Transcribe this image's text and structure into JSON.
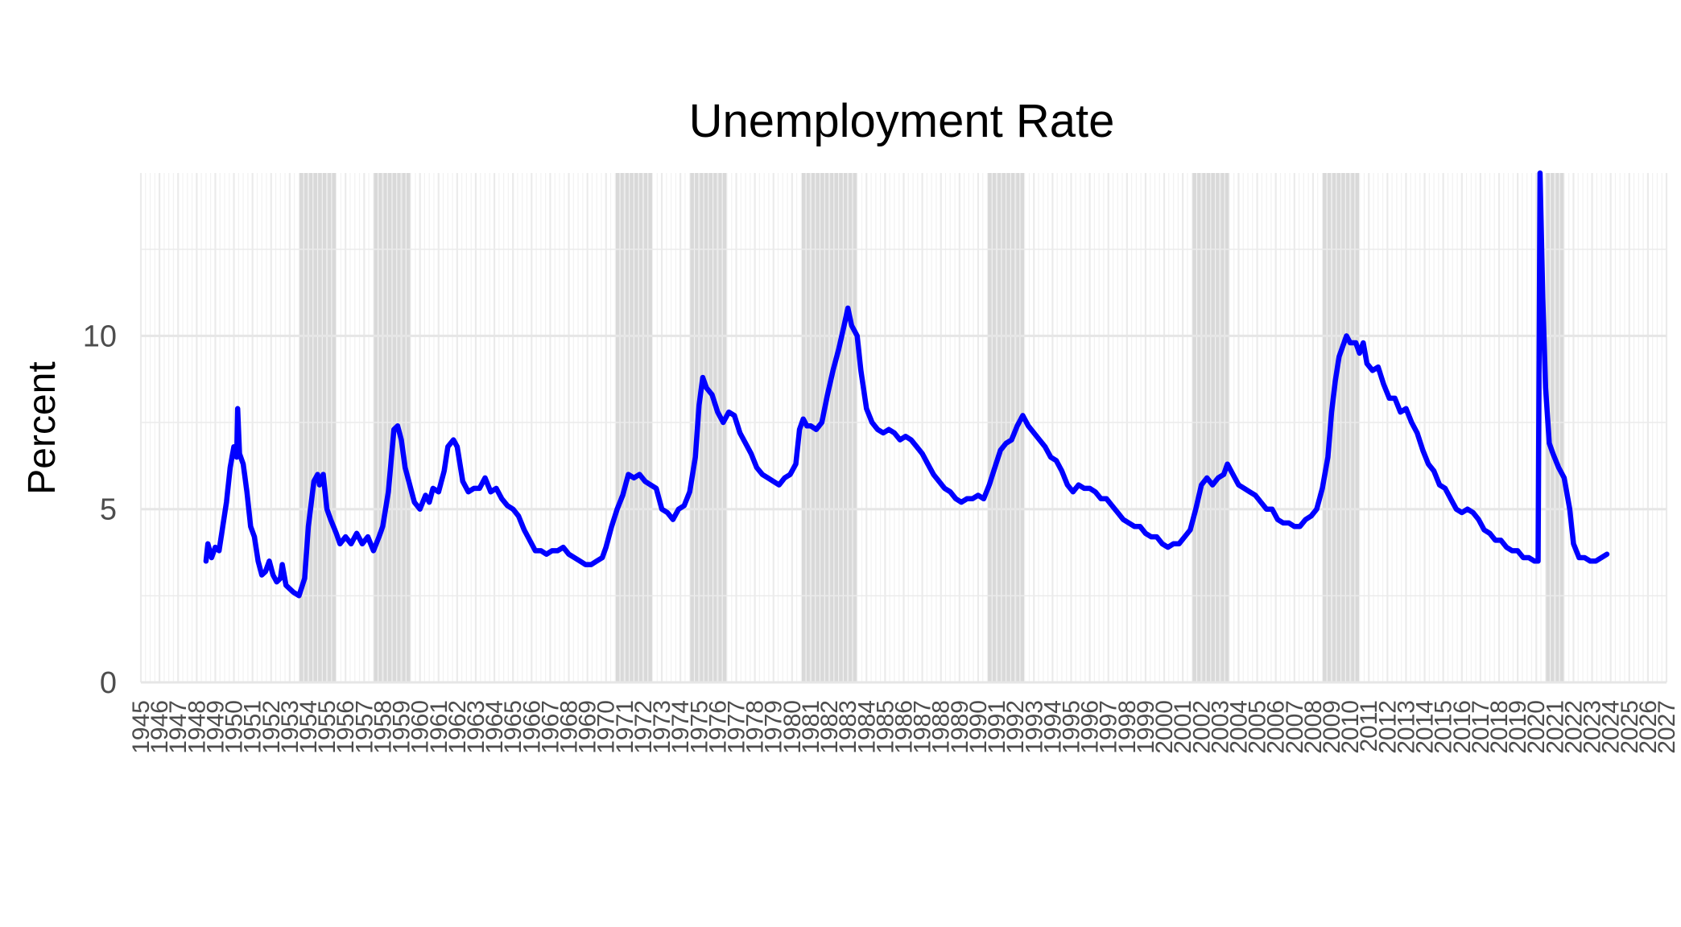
{
  "chart_data": {
    "type": "line",
    "title": "Unemployment Rate",
    "xlabel": "",
    "ylabel": "Percent",
    "xlim": [
      1945,
      2027
    ],
    "ylim": [
      0,
      14.7
    ],
    "y_ticks": [
      0,
      5,
      10
    ],
    "x_tick_labels": [
      "1945",
      "1946",
      "1947",
      "1948",
      "1949",
      "1950",
      "1951",
      "1952",
      "1953",
      "1954",
      "1955",
      "1956",
      "1957",
      "1958",
      "1959",
      "1960",
      "1961",
      "1962",
      "1963",
      "1964",
      "1965",
      "1966",
      "1967",
      "1968",
      "1969",
      "1970",
      "1971",
      "1972",
      "1973",
      "1974",
      "1975",
      "1976",
      "1977",
      "1978",
      "1979",
      "1980",
      "1981",
      "1982",
      "1983",
      "1984",
      "1985",
      "1986",
      "1987",
      "1988",
      "1989",
      "1990",
      "1991",
      "1992",
      "1993",
      "1994",
      "1995",
      "1996",
      "1997",
      "1998",
      "1999",
      "2000",
      "2001",
      "2002",
      "2003",
      "2004",
      "2005",
      "2006",
      "2007",
      "2008",
      "2009",
      "2010",
      "2011",
      "2012",
      "2013",
      "2014",
      "2015",
      "2016",
      "2017",
      "2018",
      "2019",
      "2020",
      "2021",
      "2022",
      "2023",
      "2024",
      "2025",
      "2026",
      "2027"
    ],
    "grid": true,
    "legend": "none",
    "recessions": [
      [
        1953.5,
        1955.5
      ],
      [
        1957.5,
        1959.5
      ],
      [
        1970.5,
        1972.5
      ],
      [
        1974.5,
        1976.5
      ],
      [
        1980.5,
        1983.5
      ],
      [
        1990.5,
        1992.5
      ],
      [
        2001.5,
        2003.5
      ],
      [
        2008.5,
        2010.5
      ],
      [
        2020.5,
        2021.5
      ]
    ],
    "recession_color": "#d9d9d9",
    "series": [
      {
        "color": "#0000ff",
        "points": [
          [
            1948.5,
            3.5
          ],
          [
            1948.6,
            4.0
          ],
          [
            1948.8,
            3.6
          ],
          [
            1949.0,
            3.9
          ],
          [
            1949.2,
            3.8
          ],
          [
            1949.4,
            4.5
          ],
          [
            1949.6,
            5.2
          ],
          [
            1949.8,
            6.2
          ],
          [
            1950.0,
            6.8
          ],
          [
            1950.15,
            6.5
          ],
          [
            1950.2,
            7.9
          ],
          [
            1950.3,
            6.6
          ],
          [
            1950.5,
            6.3
          ],
          [
            1950.7,
            5.5
          ],
          [
            1950.9,
            4.5
          ],
          [
            1951.1,
            4.2
          ],
          [
            1951.3,
            3.5
          ],
          [
            1951.5,
            3.1
          ],
          [
            1951.7,
            3.2
          ],
          [
            1951.9,
            3.5
          ],
          [
            1952.1,
            3.1
          ],
          [
            1952.3,
            2.9
          ],
          [
            1952.5,
            3.0
          ],
          [
            1952.6,
            3.4
          ],
          [
            1952.8,
            2.8
          ],
          [
            1953.0,
            2.7
          ],
          [
            1953.2,
            2.6
          ],
          [
            1953.5,
            2.5
          ],
          [
            1953.8,
            3.0
          ],
          [
            1954.0,
            4.5
          ],
          [
            1954.3,
            5.8
          ],
          [
            1954.5,
            6.0
          ],
          [
            1954.6,
            5.7
          ],
          [
            1954.8,
            6.0
          ],
          [
            1955.0,
            5.0
          ],
          [
            1955.2,
            4.7
          ],
          [
            1955.5,
            4.3
          ],
          [
            1955.7,
            4.0
          ],
          [
            1956.0,
            4.2
          ],
          [
            1956.3,
            4.0
          ],
          [
            1956.6,
            4.3
          ],
          [
            1956.9,
            4.0
          ],
          [
            1957.2,
            4.2
          ],
          [
            1957.5,
            3.8
          ],
          [
            1957.8,
            4.2
          ],
          [
            1958.0,
            4.5
          ],
          [
            1958.3,
            5.5
          ],
          [
            1958.6,
            7.3
          ],
          [
            1958.8,
            7.4
          ],
          [
            1959.0,
            7.0
          ],
          [
            1959.2,
            6.2
          ],
          [
            1959.4,
            5.8
          ],
          [
            1959.7,
            5.2
          ],
          [
            1960.0,
            5.0
          ],
          [
            1960.3,
            5.4
          ],
          [
            1960.5,
            5.2
          ],
          [
            1960.7,
            5.6
          ],
          [
            1961.0,
            5.5
          ],
          [
            1961.3,
            6.1
          ],
          [
            1961.5,
            6.8
          ],
          [
            1961.8,
            7.0
          ],
          [
            1962.0,
            6.8
          ],
          [
            1962.3,
            5.8
          ],
          [
            1962.6,
            5.5
          ],
          [
            1962.9,
            5.6
          ],
          [
            1963.2,
            5.6
          ],
          [
            1963.5,
            5.9
          ],
          [
            1963.8,
            5.5
          ],
          [
            1964.1,
            5.6
          ],
          [
            1964.4,
            5.3
          ],
          [
            1964.7,
            5.1
          ],
          [
            1965.0,
            5.0
          ],
          [
            1965.3,
            4.8
          ],
          [
            1965.6,
            4.4
          ],
          [
            1965.9,
            4.1
          ],
          [
            1966.2,
            3.8
          ],
          [
            1966.5,
            3.8
          ],
          [
            1966.8,
            3.7
          ],
          [
            1967.1,
            3.8
          ],
          [
            1967.4,
            3.8
          ],
          [
            1967.7,
            3.9
          ],
          [
            1968.0,
            3.7
          ],
          [
            1968.3,
            3.6
          ],
          [
            1968.6,
            3.5
          ],
          [
            1968.9,
            3.4
          ],
          [
            1969.2,
            3.4
          ],
          [
            1969.5,
            3.5
          ],
          [
            1969.8,
            3.6
          ],
          [
            1970.0,
            3.9
          ],
          [
            1970.3,
            4.5
          ],
          [
            1970.6,
            5.0
          ],
          [
            1970.9,
            5.4
          ],
          [
            1971.2,
            6.0
          ],
          [
            1971.5,
            5.9
          ],
          [
            1971.8,
            6.0
          ],
          [
            1972.1,
            5.8
          ],
          [
            1972.4,
            5.7
          ],
          [
            1972.7,
            5.6
          ],
          [
            1973.0,
            5.0
          ],
          [
            1973.3,
            4.9
          ],
          [
            1973.6,
            4.7
          ],
          [
            1973.9,
            5.0
          ],
          [
            1974.2,
            5.1
          ],
          [
            1974.5,
            5.5
          ],
          [
            1974.8,
            6.5
          ],
          [
            1975.0,
            8.0
          ],
          [
            1975.2,
            8.8
          ],
          [
            1975.4,
            8.5
          ],
          [
            1975.7,
            8.3
          ],
          [
            1976.0,
            7.8
          ],
          [
            1976.3,
            7.5
          ],
          [
            1976.6,
            7.8
          ],
          [
            1976.9,
            7.7
          ],
          [
            1977.2,
            7.2
          ],
          [
            1977.5,
            6.9
          ],
          [
            1977.8,
            6.6
          ],
          [
            1978.1,
            6.2
          ],
          [
            1978.4,
            6.0
          ],
          [
            1978.7,
            5.9
          ],
          [
            1979.0,
            5.8
          ],
          [
            1979.3,
            5.7
          ],
          [
            1979.6,
            5.9
          ],
          [
            1979.9,
            6.0
          ],
          [
            1980.2,
            6.3
          ],
          [
            1980.4,
            7.3
          ],
          [
            1980.6,
            7.6
          ],
          [
            1980.8,
            7.4
          ],
          [
            1981.0,
            7.4
          ],
          [
            1981.3,
            7.3
          ],
          [
            1981.6,
            7.5
          ],
          [
            1981.9,
            8.3
          ],
          [
            1982.2,
            9.0
          ],
          [
            1982.5,
            9.6
          ],
          [
            1982.8,
            10.3
          ],
          [
            1983.0,
            10.8
          ],
          [
            1983.2,
            10.3
          ],
          [
            1983.5,
            10.0
          ],
          [
            1983.7,
            9.0
          ],
          [
            1984.0,
            7.9
          ],
          [
            1984.3,
            7.5
          ],
          [
            1984.6,
            7.3
          ],
          [
            1984.9,
            7.2
          ],
          [
            1985.2,
            7.3
          ],
          [
            1985.5,
            7.2
          ],
          [
            1985.8,
            7.0
          ],
          [
            1986.1,
            7.1
          ],
          [
            1986.4,
            7.0
          ],
          [
            1986.7,
            6.8
          ],
          [
            1987.0,
            6.6
          ],
          [
            1987.3,
            6.3
          ],
          [
            1987.6,
            6.0
          ],
          [
            1987.9,
            5.8
          ],
          [
            1988.2,
            5.6
          ],
          [
            1988.5,
            5.5
          ],
          [
            1988.8,
            5.3
          ],
          [
            1989.1,
            5.2
          ],
          [
            1989.4,
            5.3
          ],
          [
            1989.7,
            5.3
          ],
          [
            1990.0,
            5.4
          ],
          [
            1990.3,
            5.3
          ],
          [
            1990.6,
            5.7
          ],
          [
            1990.9,
            6.2
          ],
          [
            1991.2,
            6.7
          ],
          [
            1991.5,
            6.9
          ],
          [
            1991.8,
            7.0
          ],
          [
            1992.1,
            7.4
          ],
          [
            1992.4,
            7.7
          ],
          [
            1992.7,
            7.4
          ],
          [
            1993.0,
            7.2
          ],
          [
            1993.3,
            7.0
          ],
          [
            1993.6,
            6.8
          ],
          [
            1993.9,
            6.5
          ],
          [
            1994.2,
            6.4
          ],
          [
            1994.5,
            6.1
          ],
          [
            1994.8,
            5.7
          ],
          [
            1995.1,
            5.5
          ],
          [
            1995.4,
            5.7
          ],
          [
            1995.7,
            5.6
          ],
          [
            1996.0,
            5.6
          ],
          [
            1996.3,
            5.5
          ],
          [
            1996.6,
            5.3
          ],
          [
            1996.9,
            5.3
          ],
          [
            1997.2,
            5.1
          ],
          [
            1997.5,
            4.9
          ],
          [
            1997.8,
            4.7
          ],
          [
            1998.1,
            4.6
          ],
          [
            1998.4,
            4.5
          ],
          [
            1998.7,
            4.5
          ],
          [
            1999.0,
            4.3
          ],
          [
            1999.3,
            4.2
          ],
          [
            1999.6,
            4.2
          ],
          [
            1999.9,
            4.0
          ],
          [
            2000.2,
            3.9
          ],
          [
            2000.5,
            4.0
          ],
          [
            2000.8,
            4.0
          ],
          [
            2001.1,
            4.2
          ],
          [
            2001.4,
            4.4
          ],
          [
            2001.7,
            5.0
          ],
          [
            2002.0,
            5.7
          ],
          [
            2002.3,
            5.9
          ],
          [
            2002.6,
            5.7
          ],
          [
            2002.9,
            5.9
          ],
          [
            2003.2,
            6.0
          ],
          [
            2003.4,
            6.3
          ],
          [
            2003.7,
            6.0
          ],
          [
            2004.0,
            5.7
          ],
          [
            2004.3,
            5.6
          ],
          [
            2004.6,
            5.5
          ],
          [
            2004.9,
            5.4
          ],
          [
            2005.2,
            5.2
          ],
          [
            2005.5,
            5.0
          ],
          [
            2005.8,
            5.0
          ],
          [
            2006.1,
            4.7
          ],
          [
            2006.4,
            4.6
          ],
          [
            2006.7,
            4.6
          ],
          [
            2007.0,
            4.5
          ],
          [
            2007.3,
            4.5
          ],
          [
            2007.6,
            4.7
          ],
          [
            2007.9,
            4.8
          ],
          [
            2008.2,
            5.0
          ],
          [
            2008.5,
            5.6
          ],
          [
            2008.8,
            6.5
          ],
          [
            2009.0,
            7.8
          ],
          [
            2009.2,
            8.7
          ],
          [
            2009.4,
            9.4
          ],
          [
            2009.6,
            9.7
          ],
          [
            2009.8,
            10.0
          ],
          [
            2010.0,
            9.8
          ],
          [
            2010.3,
            9.8
          ],
          [
            2010.5,
            9.5
          ],
          [
            2010.7,
            9.8
          ],
          [
            2010.9,
            9.2
          ],
          [
            2011.2,
            9.0
          ],
          [
            2011.5,
            9.1
          ],
          [
            2011.8,
            8.6
          ],
          [
            2012.1,
            8.2
          ],
          [
            2012.4,
            8.2
          ],
          [
            2012.7,
            7.8
          ],
          [
            2013.0,
            7.9
          ],
          [
            2013.3,
            7.5
          ],
          [
            2013.6,
            7.2
          ],
          [
            2013.9,
            6.7
          ],
          [
            2014.2,
            6.3
          ],
          [
            2014.5,
            6.1
          ],
          [
            2014.8,
            5.7
          ],
          [
            2015.1,
            5.6
          ],
          [
            2015.4,
            5.3
          ],
          [
            2015.7,
            5.0
          ],
          [
            2016.0,
            4.9
          ],
          [
            2016.3,
            5.0
          ],
          [
            2016.6,
            4.9
          ],
          [
            2016.9,
            4.7
          ],
          [
            2017.2,
            4.4
          ],
          [
            2017.5,
            4.3
          ],
          [
            2017.8,
            4.1
          ],
          [
            2018.1,
            4.1
          ],
          [
            2018.4,
            3.9
          ],
          [
            2018.7,
            3.8
          ],
          [
            2019.0,
            3.8
          ],
          [
            2019.3,
            3.6
          ],
          [
            2019.6,
            3.6
          ],
          [
            2019.9,
            3.5
          ],
          [
            2020.1,
            3.5
          ],
          [
            2020.2,
            14.7
          ],
          [
            2020.35,
            11.1
          ],
          [
            2020.5,
            8.5
          ],
          [
            2020.7,
            6.9
          ],
          [
            2020.9,
            6.6
          ],
          [
            2021.2,
            6.2
          ],
          [
            2021.5,
            5.9
          ],
          [
            2021.8,
            5.0
          ],
          [
            2022.0,
            4.0
          ],
          [
            2022.3,
            3.6
          ],
          [
            2022.6,
            3.6
          ],
          [
            2022.9,
            3.5
          ],
          [
            2023.2,
            3.5
          ],
          [
            2023.5,
            3.6
          ],
          [
            2023.8,
            3.7
          ]
        ]
      }
    ]
  }
}
